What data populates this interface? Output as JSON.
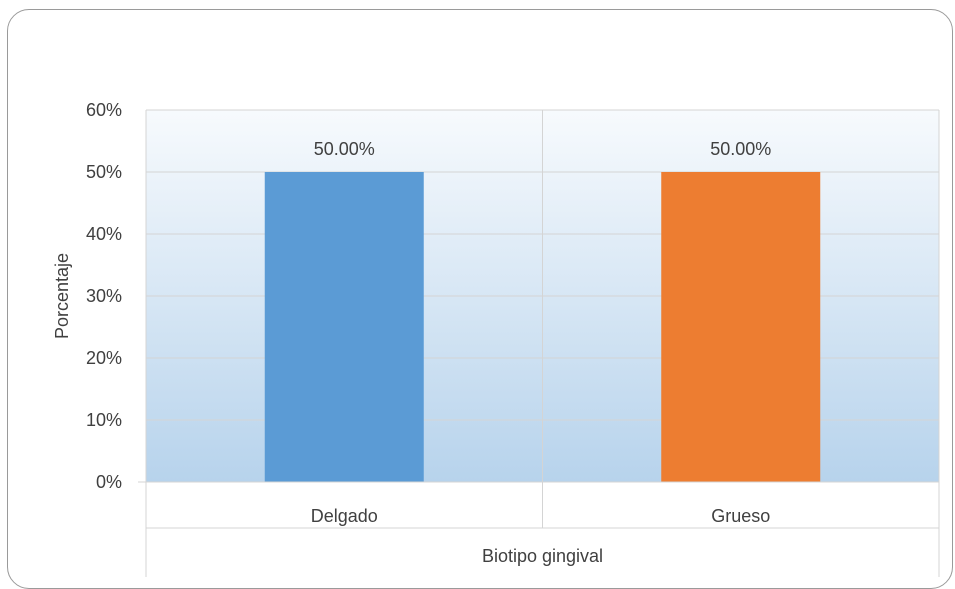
{
  "chart_data": {
    "type": "bar",
    "title": "",
    "xlabel": "Biotipo gingival",
    "ylabel": "Porcentaje",
    "categories": [
      "Delgado",
      "Grueso"
    ],
    "values": [
      50,
      50
    ],
    "data_labels": [
      "50.00%",
      "50.00%"
    ],
    "bar_colors": [
      "#5b9bd5",
      "#ed7d31"
    ],
    "ylim": [
      0,
      60
    ],
    "yticks": [
      0,
      10,
      20,
      30,
      40,
      50,
      60
    ],
    "ytick_labels": [
      "0%",
      "10%",
      "20%",
      "30%",
      "40%",
      "50%",
      "60%"
    ],
    "grid": true,
    "legend": "none",
    "plot_background": "gradient light blue"
  }
}
